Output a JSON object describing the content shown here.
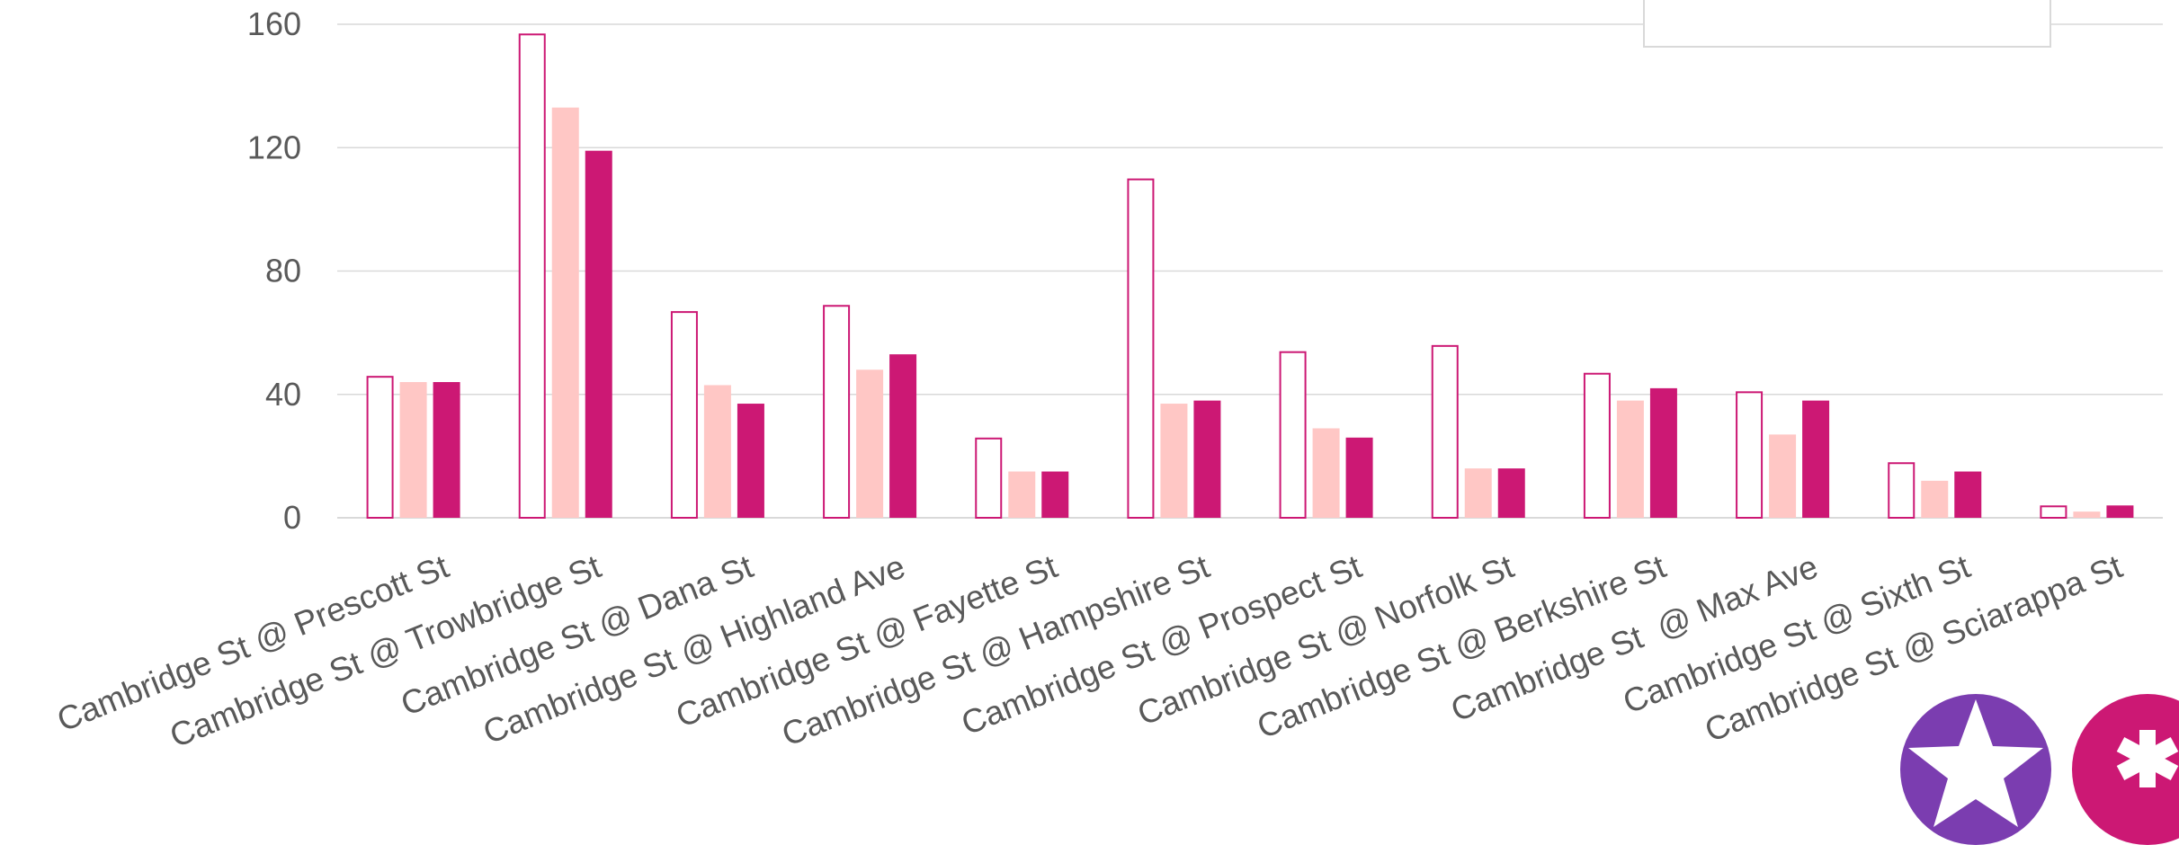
{
  "chart_data": {
    "type": "bar",
    "categories": [
      "Cambridge St @ Prescott St",
      "Cambridge St @ Trowbridge St",
      "Cambridge St @ Dana St",
      "Cambridge St @ Highland Ave",
      "Cambridge St @ Fayette St",
      "Cambridge St @ Hampshire St",
      "Cambridge St @ Prospect St",
      "Cambridge St @ Norfolk St",
      "Cambridge St @ Berkshire St",
      "Cambridge St  @ Max Ave",
      "Cambridge St @ Sixth St",
      "Cambridge St @ Sciarappa St"
    ],
    "series": [
      {
        "values": [
          46,
          157,
          67,
          69,
          26,
          110,
          54,
          56,
          47,
          41,
          18,
          4
        ],
        "color": "#cc1874",
        "style": "outline"
      },
      {
        "values": [
          44,
          133,
          43,
          48,
          15,
          37,
          29,
          16,
          38,
          27,
          12,
          2
        ],
        "color": "#ffc7c5",
        "style": "filled"
      },
      {
        "values": [
          44,
          119,
          37,
          53,
          15,
          38,
          26,
          16,
          42,
          38,
          15,
          4
        ],
        "color": "#cc1874",
        "style": "filled"
      }
    ],
    "yticks": [
      0,
      40,
      80,
      120,
      160
    ],
    "ylim": [
      0,
      160
    ],
    "grid": true,
    "legend": "top-right (partially cropped)",
    "gridline_color": "#d9d9d9",
    "tick_label_color": "#595959"
  },
  "badges": [
    {
      "icon": "star-icon",
      "color": "#7b3db0"
    },
    {
      "icon": "asterisk-icon",
      "color": "#cc1874"
    }
  ]
}
